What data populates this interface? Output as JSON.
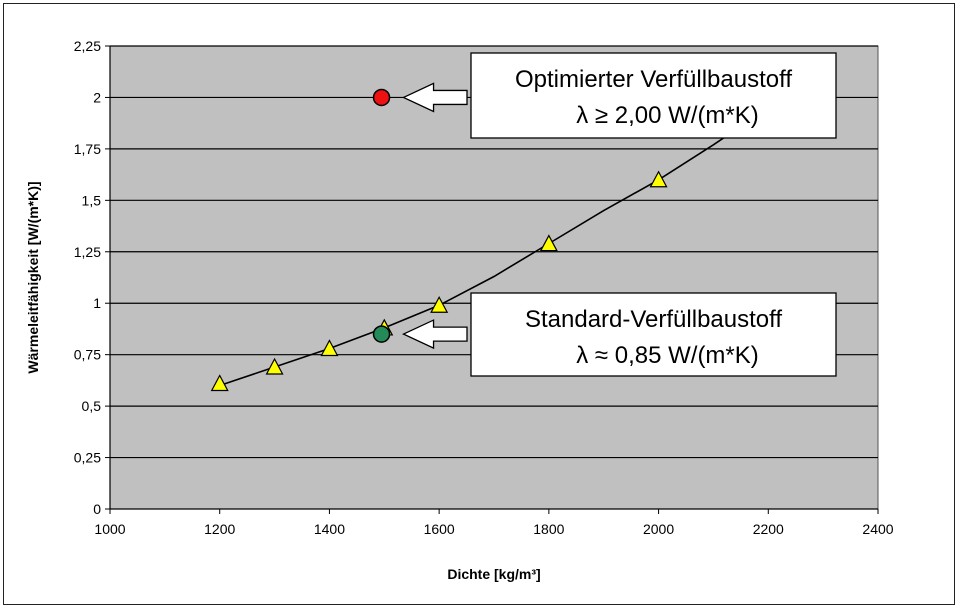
{
  "chart_data": {
    "type": "scatter",
    "title": "",
    "xlabel": "Dichte [kg/m³]",
    "ylabel": "Wärmeleitfähigkeit [W/(m*K)]",
    "xlim": [
      1000,
      2400
    ],
    "ylim": [
      0,
      2.25
    ],
    "x_ticks": [
      1000,
      1200,
      1400,
      1600,
      1800,
      2000,
      2200,
      2400
    ],
    "y_ticks": [
      0,
      0.25,
      0.5,
      0.75,
      1,
      1.25,
      1.5,
      1.75,
      2,
      2.25
    ],
    "x_tick_labels": [
      "1000",
      "1200",
      "1400",
      "1600",
      "1800",
      "2000",
      "2200",
      "2400"
    ],
    "y_tick_labels": [
      "0",
      "0,25",
      "0,5",
      "0,75",
      "1",
      "1,25",
      "1,5",
      "1,75",
      "2",
      "2,25"
    ],
    "grid": {
      "horizontal": true,
      "vertical": false
    },
    "plot_background": "#c0c0c0",
    "series": [
      {
        "marker": "triangle",
        "color": "#ffff00",
        "x": [
          1200,
          1300,
          1400,
          1500,
          1600,
          1800,
          2000
        ],
        "y": [
          0.61,
          0.69,
          0.78,
          0.88,
          0.99,
          1.29,
          1.6
        ]
      }
    ],
    "trendline": {
      "color": "#000000",
      "x": [
        1200,
        1300,
        1400,
        1500,
        1600,
        1700,
        1800,
        1900,
        2000,
        2100,
        2150
      ],
      "y": [
        0.6,
        0.69,
        0.78,
        0.88,
        0.99,
        1.13,
        1.29,
        1.45,
        1.6,
        1.77,
        1.86
      ]
    },
    "highlights": [
      {
        "name": "optimized",
        "x": 1495,
        "y": 2.0,
        "color": "#ee1111"
      },
      {
        "name": "standard",
        "x": 1495,
        "y": 0.85,
        "color": "#228b57"
      }
    ],
    "annotations": [
      {
        "target": "optimized",
        "line1": "Optimierter Verfüllbaustoff",
        "line2": "λ ≥ 2,00 W/(m*K)"
      },
      {
        "target": "standard",
        "line1": "Standard-Verfüllbaustoff",
        "line2": "λ ≈ 0,85 W/(m*K)"
      }
    ]
  }
}
